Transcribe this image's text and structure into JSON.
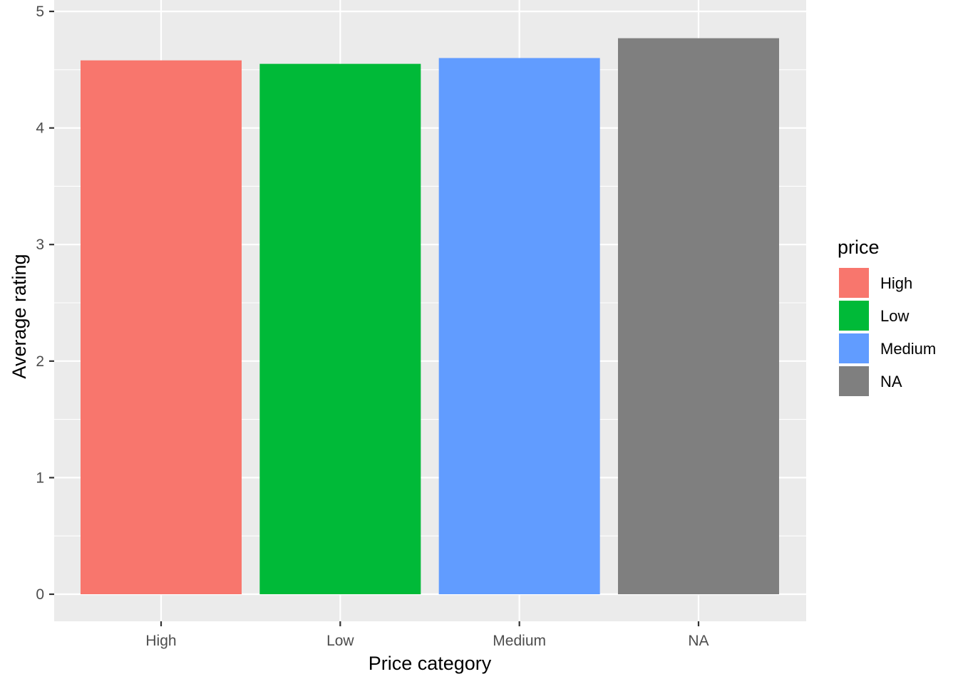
{
  "chart_data": {
    "type": "bar",
    "categories": [
      "High",
      "Low",
      "Medium",
      "NA"
    ],
    "values": [
      4.58,
      4.55,
      4.6,
      4.77
    ],
    "colors": [
      "#F8766D",
      "#00BA38",
      "#619CFF",
      "#7F7F7F"
    ],
    "xlabel": "Price category",
    "ylabel": "Average rating",
    "ylim": [
      0,
      5
    ],
    "yticks": [
      0,
      1,
      2,
      3,
      4,
      5
    ],
    "grid": true,
    "panel_background": "#EBEBEB",
    "legend": {
      "title": "price",
      "placement": "right",
      "entries": [
        "High",
        "Low",
        "Medium",
        "NA"
      ]
    }
  }
}
